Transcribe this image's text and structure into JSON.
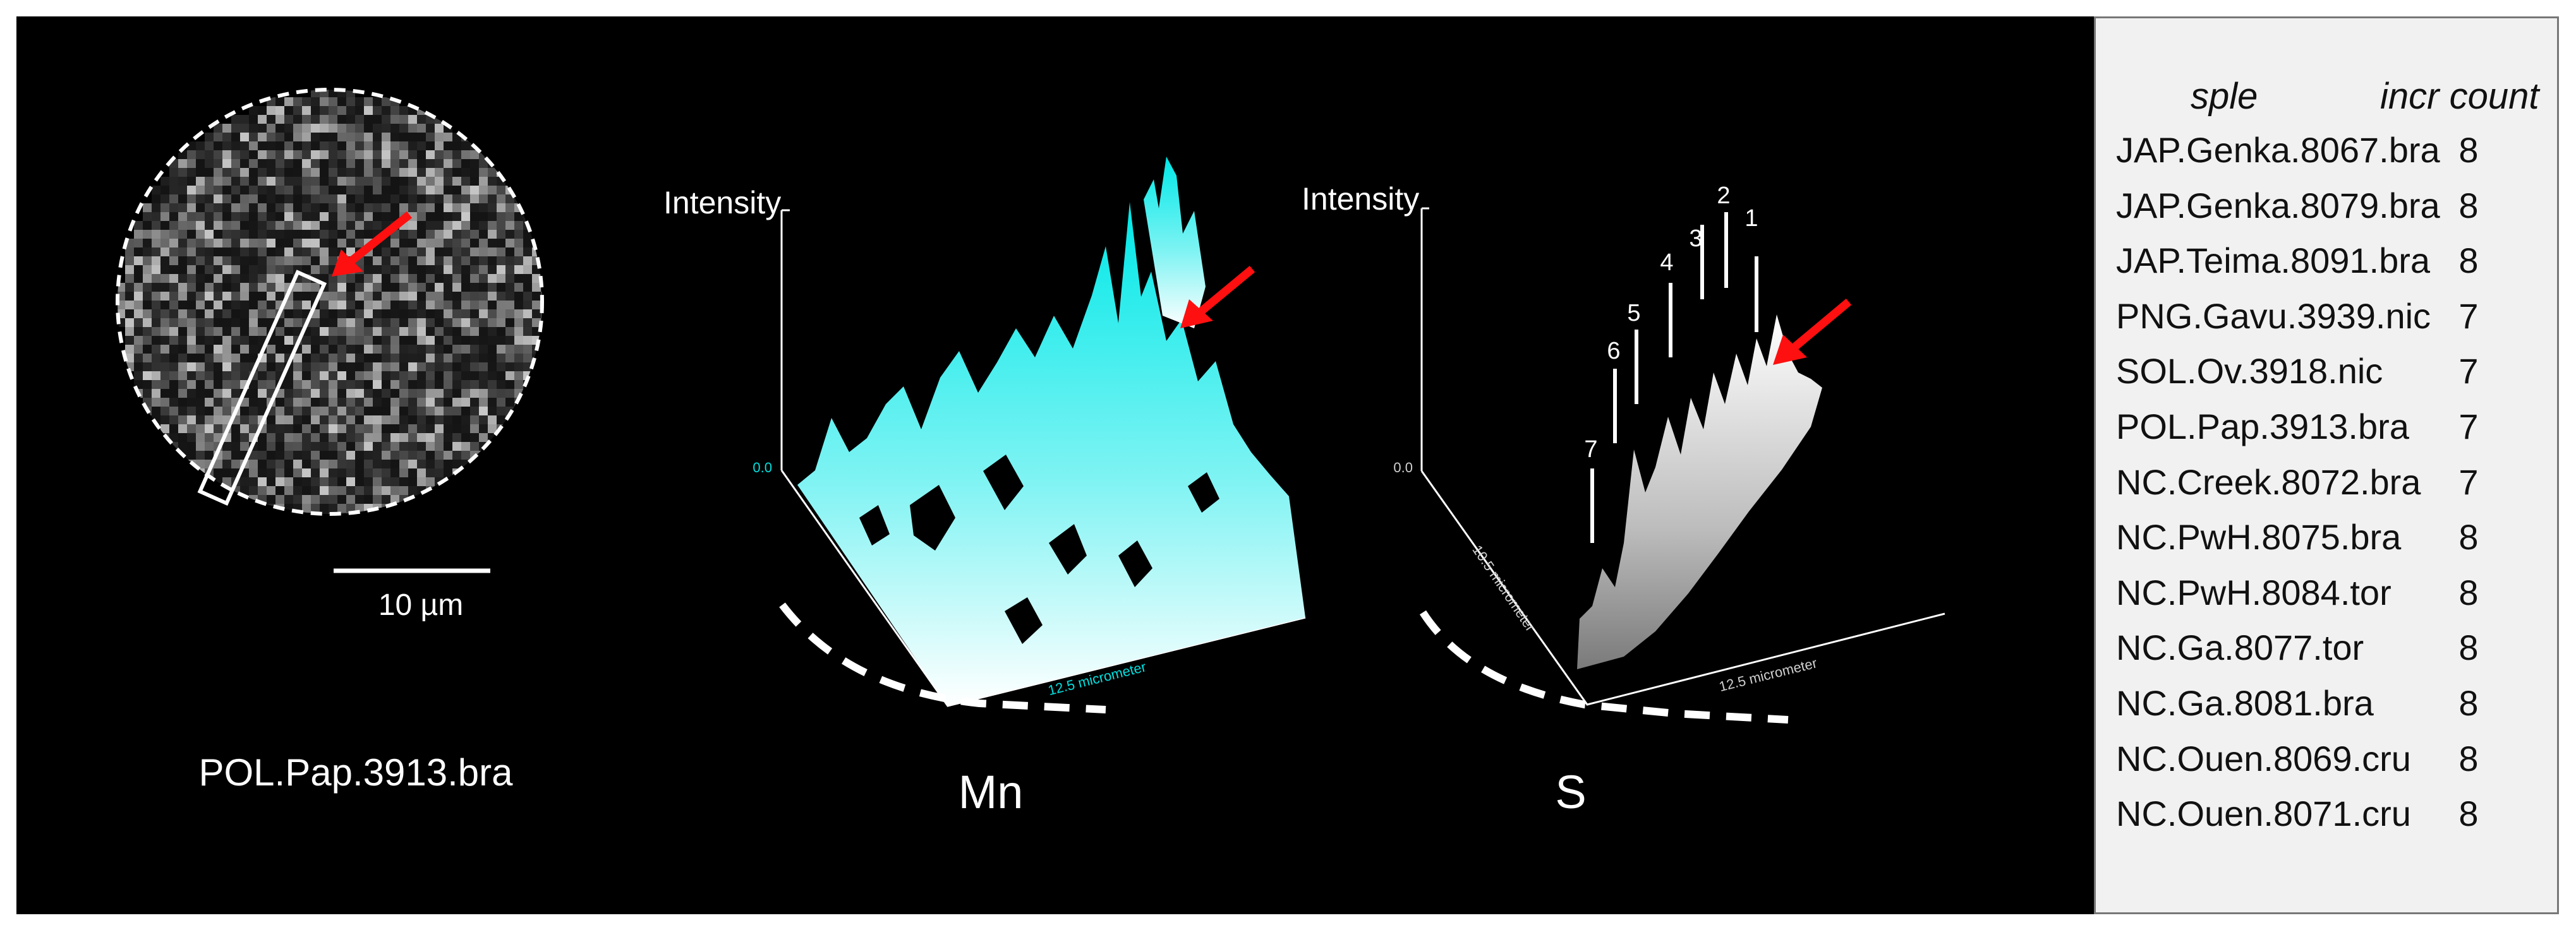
{
  "sample_panel": {
    "scale_bar_label": "10 µm",
    "sample_name": "POL.Pap.3913.bra"
  },
  "mn_panel": {
    "axis_label": "Intensity",
    "axis_zero": "0.0",
    "x_axis_label": "12.5 micrometer",
    "element": "Mn",
    "surface_color": "#00e5e5"
  },
  "s_panel": {
    "axis_label": "Intensity",
    "axis_zero": "0.0",
    "x_axis_label": "12.5 micrometer",
    "y_axis_label": "10.5 micrometer",
    "element": "S",
    "peak_labels": [
      "1",
      "2",
      "3",
      "4",
      "5",
      "6",
      "7"
    ],
    "surface_color": "#d8d8d8"
  },
  "arrow_color": "#ff1010",
  "table": {
    "headers": [
      "sple",
      "incr count"
    ],
    "rows": [
      {
        "sample": "JAP.Genka.8067.bra",
        "count": "8"
      },
      {
        "sample": "JAP.Genka.8079.bra",
        "count": "8"
      },
      {
        "sample": "JAP.Teima.8091.bra",
        "count": "8"
      },
      {
        "sample": "PNG.Gavu.3939.nic",
        "count": "7"
      },
      {
        "sample": "SOL.Ov.3918.nic",
        "count": "7"
      },
      {
        "sample": "POL.Pap.3913.bra",
        "count": "7"
      },
      {
        "sample": "NC.Creek.8072.bra",
        "count": "7"
      },
      {
        "sample": "NC.PwH.8075.bra",
        "count": "8"
      },
      {
        "sample": "NC.PwH.8084.tor",
        "count": "8"
      },
      {
        "sample": "NC.Ga.8077.tor",
        "count": "8"
      },
      {
        "sample": "NC.Ga.8081.bra",
        "count": "8"
      },
      {
        "sample": "NC.Ouen.8069.cru",
        "count": "8"
      },
      {
        "sample": "NC.Ouen.8071.cru",
        "count": "8"
      }
    ]
  }
}
